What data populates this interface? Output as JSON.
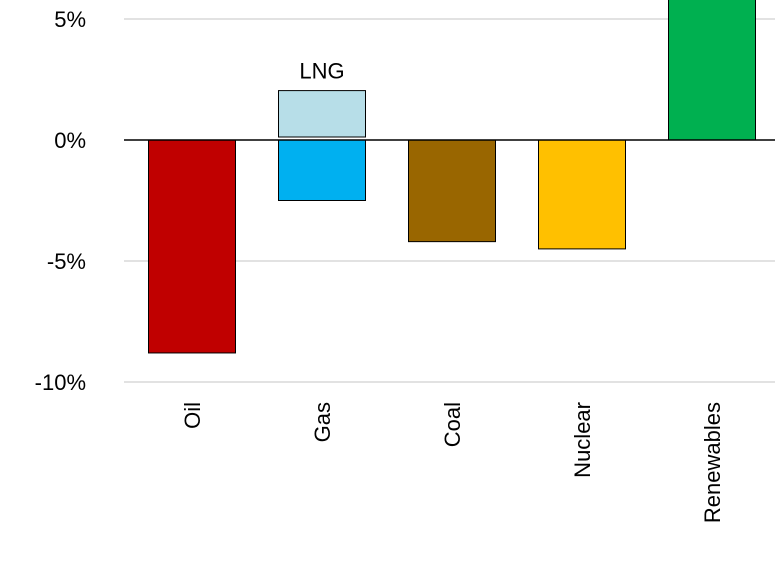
{
  "chart_data": {
    "type": "bar",
    "title": "",
    "xlabel": "",
    "ylabel": "",
    "ylim": [
      -10,
      5
    ],
    "yticks": [
      {
        "value": 5,
        "label": "5%"
      },
      {
        "value": 0,
        "label": "0%"
      },
      {
        "value": -5,
        "label": "-5%"
      },
      {
        "value": -10,
        "label": "-10%"
      }
    ],
    "grid": true,
    "legend": "none",
    "categories": [
      "Oil",
      "Gas",
      "Coal",
      "Nuclear",
      "Renewables"
    ],
    "values": [
      -8.8,
      -2.5,
      -4.2,
      -4.5,
      6.2
    ],
    "colors": [
      "#C00000",
      "#00B0F0",
      "#996600",
      "#FFC000",
      "#00B050"
    ],
    "stacked_extra": [
      {
        "category": "Gas",
        "name": "LNG",
        "value": 2.0,
        "color": "#B7DEE8"
      }
    ],
    "annotations": [
      {
        "text": "LNG",
        "category": "Gas"
      }
    ]
  }
}
